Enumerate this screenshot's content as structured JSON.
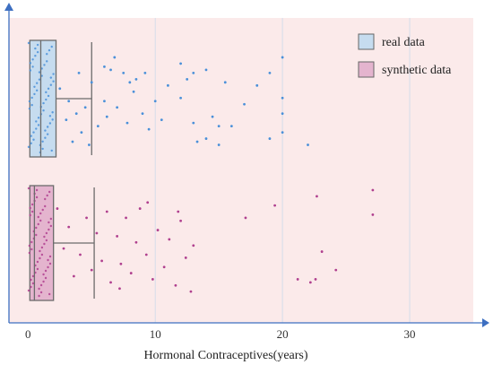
{
  "chart_data": {
    "type": "box_strip",
    "xlabel": "Hormonal Contraceptives(years)",
    "xlim": [
      -1.5,
      35
    ],
    "x_ticks": [
      0,
      10,
      20,
      30
    ],
    "grid": "vertical",
    "legend_position": "top-right",
    "background_color": "#fbeaea",
    "series": [
      {
        "name": "real data",
        "color": "#4a90d9",
        "box_fill": "#c6dcef",
        "box": {
          "whisker_low": 0,
          "q1": 0,
          "median": 1,
          "q3": 2.2,
          "whisker_high": 5
        },
        "points": [
          [
            2.5,
            2.1
          ],
          [
            3,
            1.1
          ],
          [
            3.2,
            1.7
          ],
          [
            3.8,
            1.3
          ],
          [
            4,
            2.6
          ],
          [
            4.2,
            0.7
          ],
          [
            4.5,
            1.5
          ],
          [
            5,
            2.3
          ],
          [
            5.5,
            0.9
          ],
          [
            6,
            2.8
          ],
          [
            6,
            1.7
          ],
          [
            6.2,
            1.2
          ],
          [
            6.5,
            2.7
          ],
          [
            7,
            1.5
          ],
          [
            7.5,
            2.6
          ],
          [
            7.8,
            1.0
          ],
          [
            8,
            2.3
          ],
          [
            8.3,
            2.0
          ],
          [
            9,
            1.3
          ],
          [
            9.2,
            2.6
          ],
          [
            9.5,
            0.8
          ],
          [
            10,
            1.7
          ],
          [
            10.5,
            1.1
          ],
          [
            11,
            2.2
          ],
          [
            12,
            2.9
          ],
          [
            12,
            1.8
          ],
          [
            12.5,
            2.4
          ],
          [
            13,
            2.6
          ],
          [
            13,
            1.0
          ],
          [
            13.3,
            0.4
          ],
          [
            14,
            2.7
          ],
          [
            14,
            0.5
          ],
          [
            14.5,
            1.2
          ],
          [
            15,
            0.9
          ],
          [
            15,
            0.3
          ],
          [
            15.5,
            2.3
          ],
          [
            16,
            0.9
          ],
          [
            17,
            1.6
          ],
          [
            18,
            2.2
          ],
          [
            19,
            2.6
          ],
          [
            19,
            0.5
          ],
          [
            20,
            1.8
          ],
          [
            20,
            1.3
          ],
          [
            20,
            0.7
          ],
          [
            20,
            3.1
          ],
          [
            22,
            0.3
          ],
          [
            6.8,
            3.1
          ],
          [
            8.5,
            2.4
          ],
          [
            3.5,
            0.4
          ],
          [
            4.8,
            0.3
          ]
        ]
      },
      {
        "name": "synthetic data",
        "color": "#b0408f",
        "box_fill": "#e4b4ce",
        "box": {
          "whisker_low": 0,
          "q1": 0,
          "median": 0.5,
          "q3": 2.0,
          "whisker_high": 5.2
        },
        "points": [
          [
            2.3,
            2.9
          ],
          [
            2.8,
            1.6
          ],
          [
            3.2,
            2.3
          ],
          [
            3.6,
            0.7
          ],
          [
            4.1,
            1.4
          ],
          [
            4.6,
            2.6
          ],
          [
            5,
            0.9
          ],
          [
            5.4,
            2.1
          ],
          [
            5.8,
            1.2
          ],
          [
            6.2,
            2.8
          ],
          [
            6.5,
            0.5
          ],
          [
            7,
            2.0
          ],
          [
            7.3,
            1.1
          ],
          [
            7.7,
            2.6
          ],
          [
            8.1,
            0.8
          ],
          [
            8.5,
            1.8
          ],
          [
            8.8,
            2.9
          ],
          [
            9.3,
            1.4
          ],
          [
            9.8,
            0.6
          ],
          [
            10.2,
            2.2
          ],
          [
            10.7,
            1.0
          ],
          [
            11.1,
            1.9
          ],
          [
            11.6,
            0.4
          ],
          [
            12,
            2.5
          ],
          [
            12.4,
            1.3
          ],
          [
            12.8,
            0.2
          ],
          [
            13,
            1.7
          ],
          [
            7.2,
            0.3
          ],
          [
            9.4,
            3.1
          ],
          [
            11.8,
            2.8
          ],
          [
            17.1,
            2.6
          ],
          [
            19.4,
            3.0
          ],
          [
            21.2,
            0.6
          ],
          [
            22.2,
            0.5
          ],
          [
            22.6,
            0.6
          ],
          [
            22.7,
            3.3
          ],
          [
            23.1,
            1.5
          ],
          [
            24.2,
            0.9
          ],
          [
            27.1,
            3.5
          ],
          [
            27.1,
            2.7
          ]
        ]
      }
    ]
  }
}
